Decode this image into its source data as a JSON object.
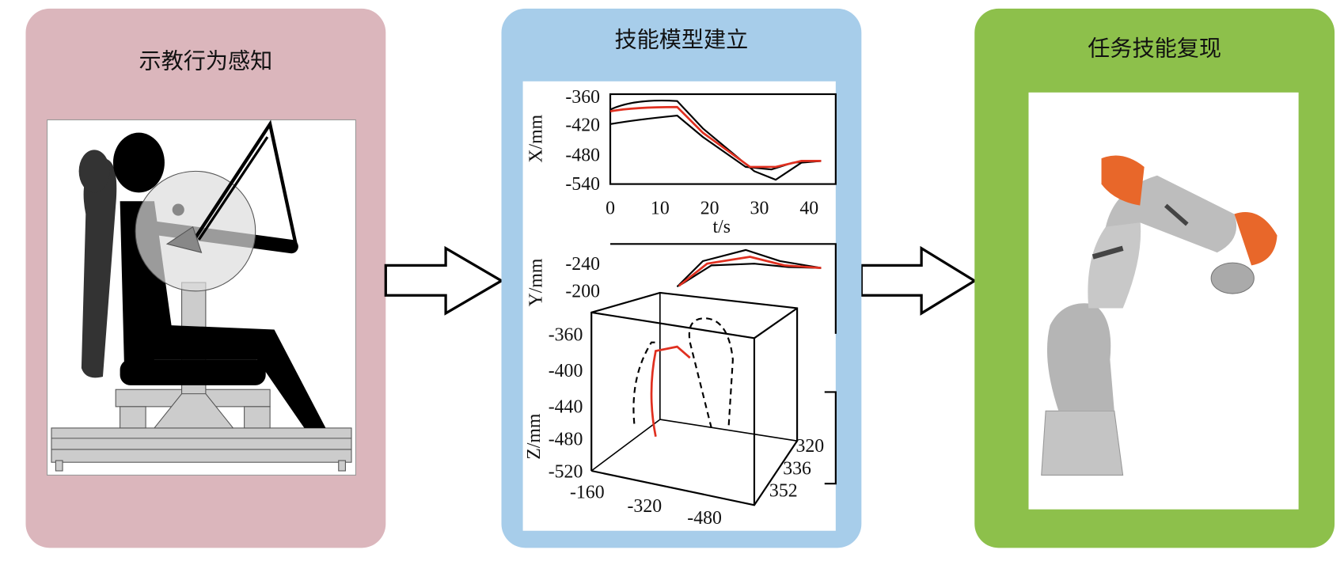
{
  "panels": [
    {
      "title": "示教行为感知"
    },
    {
      "title": "技能模型建立",
      "plot_x": {
        "ylabel": "X/mm",
        "yticks": [
          -360,
          -420,
          -480,
          -540
        ],
        "xticks": [
          0,
          10,
          20,
          30,
          40
        ],
        "xlabel": "t/s"
      },
      "plot_y": {
        "ylabel": "Y/mm",
        "yticks": [
          -240,
          -200
        ]
      },
      "plot_3d": {
        "zlabel": "Z/mm",
        "zticks": [
          -360,
          -400,
          -440,
          -480,
          -520
        ],
        "xticks": [
          -160,
          -320,
          -480
        ],
        "yticks": [
          320,
          336,
          352
        ]
      }
    },
    {
      "title": "任务技能复现"
    }
  ]
}
